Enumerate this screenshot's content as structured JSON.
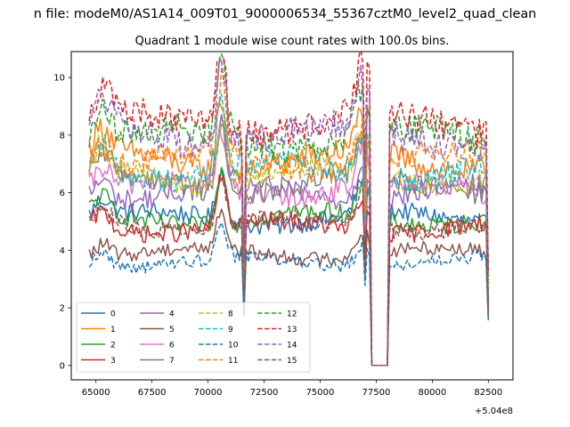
{
  "figure": {
    "suptitle": "n file: modeM0/AS1A14_009T01_9000006534_55367cztM0_level2_quad_clean",
    "offset_label": "+5.04e8"
  },
  "chart_data": {
    "type": "line",
    "title": "Quadrant 1 module wise count rates with 100.0s bins.",
    "xlabel": "",
    "ylabel": "",
    "x_offset": 504000000,
    "xlim": [
      63900,
      83600
    ],
    "ylim": [
      -0.5,
      10.9
    ],
    "xticks": [
      65000,
      67500,
      70000,
      72500,
      75000,
      77500,
      80000,
      82500
    ],
    "xtick_labels": [
      "65000",
      "67500",
      "70000",
      "72500",
      "75000",
      "77500",
      "80000",
      "82500"
    ],
    "yticks": [
      0,
      2,
      4,
      6,
      8,
      10
    ],
    "ytick_labels": [
      "0",
      "2",
      "4",
      "6",
      "8",
      "10"
    ],
    "x_range": [
      64700,
      82500
    ],
    "bin": 100,
    "grid": false,
    "legend_placement": "lower-left",
    "legend_columns": 4,
    "features": {
      "dips": [
        {
          "center": 71600,
          "width": 80,
          "depth": 0.55
        },
        {
          "center": 77000,
          "width": 60,
          "depth": 0.35
        },
        {
          "center": 82500,
          "width": 60,
          "depth": 0.6
        }
      ],
      "zero_gap": [
        77300,
        78000
      ],
      "peaks": [
        {
          "center": 70600,
          "width": 300,
          "height": 0.35
        },
        {
          "center": 76900,
          "width": 400,
          "height": 0.22
        },
        {
          "center": 65300,
          "width": 500,
          "height": 0.12
        }
      ]
    },
    "series": [
      {
        "name": "0",
        "color": "#1f77b4",
        "dash": false,
        "level": 5.1
      },
      {
        "name": "1",
        "color": "#ff7f0e",
        "dash": false,
        "level": 7.1
      },
      {
        "name": "2",
        "color": "#2ca02c",
        "dash": false,
        "level": 5.1
      },
      {
        "name": "3",
        "color": "#d62728",
        "dash": false,
        "level": 4.8
      },
      {
        "name": "4",
        "color": "#9467bd",
        "dash": false,
        "level": 6.0
      },
      {
        "name": "5",
        "color": "#8c564b",
        "dash": false,
        "level": 3.9
      },
      {
        "name": "6",
        "color": "#e377c2",
        "dash": false,
        "level": 6.1
      },
      {
        "name": "7",
        "color": "#7f7f7f",
        "dash": false,
        "level": 6.3
      },
      {
        "name": "8",
        "color": "#bcbd22",
        "dash": true,
        "level": 6.6
      },
      {
        "name": "9",
        "color": "#17becf",
        "dash": true,
        "level": 6.8
      },
      {
        "name": "10",
        "color": "#1f77b4",
        "dash": true,
        "level": 3.6
      },
      {
        "name": "11",
        "color": "#ff7f0e",
        "dash": true,
        "level": 7.1
      },
      {
        "name": "12",
        "color": "#2ca02c",
        "dash": true,
        "level": 7.9
      },
      {
        "name": "13",
        "color": "#d62728",
        "dash": true,
        "level": 8.4
      },
      {
        "name": "14",
        "color": "#9467bd",
        "dash": true,
        "level": 8.0
      },
      {
        "name": "15",
        "color": "#8c564b",
        "dash": true,
        "level": 4.9
      }
    ]
  }
}
